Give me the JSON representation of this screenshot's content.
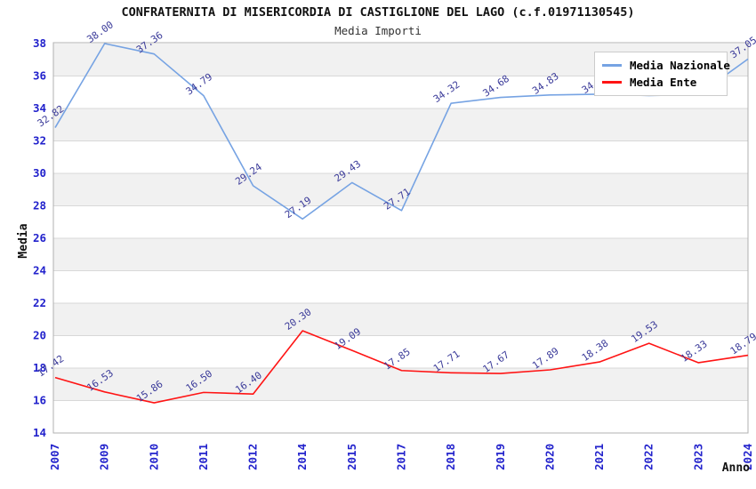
{
  "chart_data": {
    "type": "line",
    "title": "CONFRATERNITA DI MISERICORDIA DI CASTIGLIONE DEL LAGO (c.f.01971130545)",
    "subtitle": "Media Importi",
    "xlabel": "Anno",
    "ylabel": "Media",
    "x": [
      "2007",
      "2009",
      "2010",
      "2011",
      "2012",
      "2014",
      "2015",
      "2017",
      "2018",
      "2019",
      "2020",
      "2021",
      "2022",
      "2023",
      "2024"
    ],
    "ylim": [
      14,
      38
    ],
    "ytick_step": 2,
    "grid": true,
    "banded_background": true,
    "legend_position": "top-right",
    "series": [
      {
        "name": "Media Nazionale",
        "color": "#76a3e3",
        "values": [
          32.82,
          38.0,
          37.36,
          34.79,
          29.24,
          27.19,
          29.43,
          27.71,
          34.32,
          34.68,
          34.83,
          34.88,
          34.8,
          34.85,
          37.05
        ],
        "labels": [
          "32.82",
          "38.00",
          "37.36",
          "34.79",
          "29.24",
          "27.19",
          "29.43",
          "27.71",
          "34.32",
          "34.68",
          "34.83",
          "34.88",
          null,
          null,
          "37.05"
        ]
      },
      {
        "name": "Media Ente",
        "color": "#ff1414",
        "values": [
          17.42,
          16.53,
          15.86,
          16.5,
          16.4,
          20.3,
          19.09,
          17.85,
          17.71,
          17.67,
          17.89,
          18.38,
          19.53,
          18.33,
          18.79
        ],
        "labels": [
          "17.42",
          "16.53",
          "15.86",
          "16.50",
          "16.40",
          "20.30",
          "19.09",
          "17.85",
          "17.71",
          "17.67",
          "17.89",
          "18.38",
          "19.53",
          "18.33",
          "18.79"
        ]
      }
    ],
    "colors": {
      "tick_label": "#2222cc",
      "point_label": "#3a3a99",
      "band_gray": "#f1f1f1",
      "gridline": "#d8d8d8",
      "plot_border": "#b0b0b0",
      "axis_title": "#111111"
    }
  }
}
